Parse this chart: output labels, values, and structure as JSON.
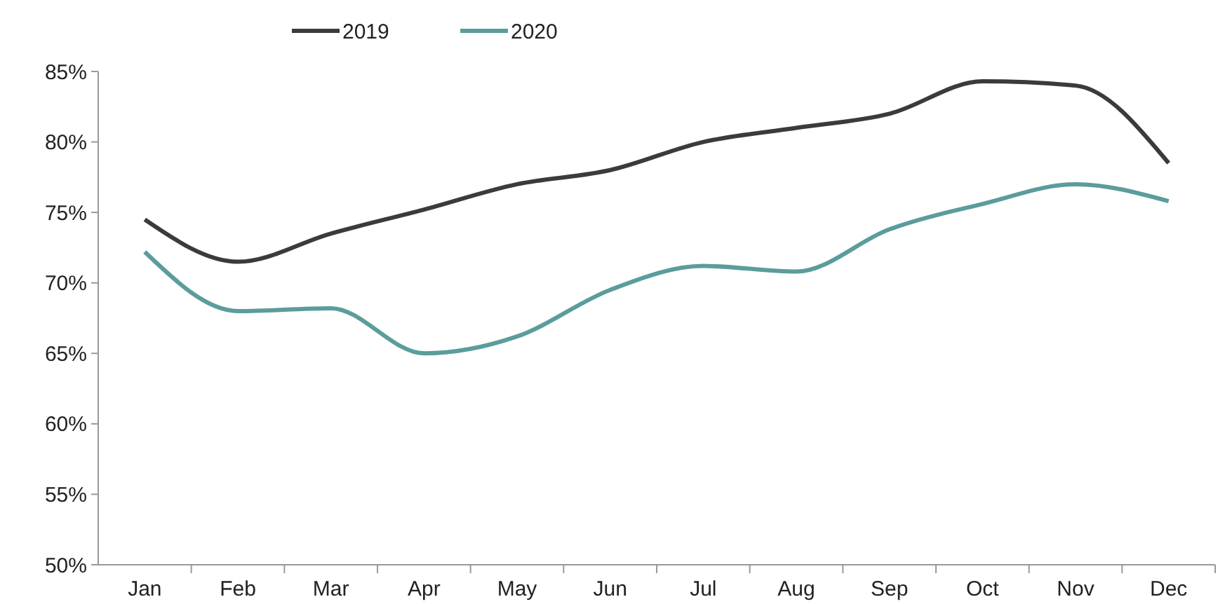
{
  "chart_data": {
    "type": "line",
    "categories": [
      "Jan",
      "Feb",
      "Mar",
      "Apr",
      "May",
      "Jun",
      "Jul",
      "Aug",
      "Sep",
      "Oct",
      "Nov",
      "Dec"
    ],
    "series": [
      {
        "name": "2019",
        "color": "#3b3b3b",
        "values": [
          74.5,
          71.5,
          73.5,
          75.2,
          77,
          78,
          80,
          81,
          82,
          84.3,
          84,
          78.5
        ]
      },
      {
        "name": "2020",
        "color": "#5b9c9c",
        "values": [
          72.2,
          68,
          68.2,
          65,
          66.2,
          69.5,
          71.2,
          70.8,
          73.8,
          75.6,
          77,
          75.8
        ]
      }
    ],
    "ylim": [
      50,
      85
    ],
    "yticks": [
      {
        "value": 50,
        "label": "50%"
      },
      {
        "value": 55,
        "label": "55%"
      },
      {
        "value": 60,
        "label": "60%"
      },
      {
        "value": 65,
        "label": "65%"
      },
      {
        "value": 70,
        "label": "70%"
      },
      {
        "value": 75,
        "label": "75%"
      },
      {
        "value": 80,
        "label": "80%"
      },
      {
        "value": 85,
        "label": "85%"
      }
    ],
    "grid": false,
    "legend": "top left",
    "marker": "none",
    "line_style": "solid"
  }
}
